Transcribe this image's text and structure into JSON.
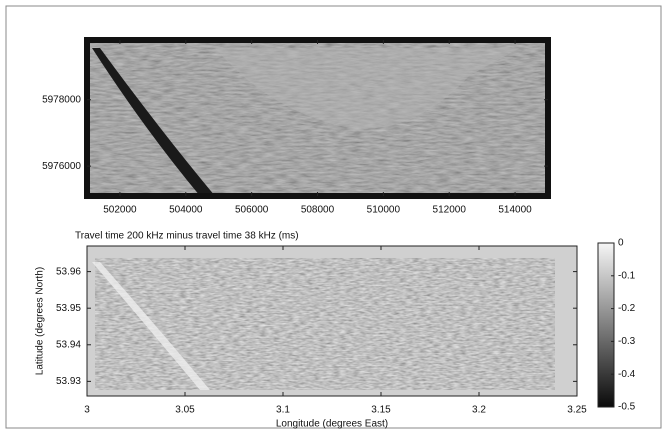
{
  "chart_data": [
    {
      "type": "image",
      "xlim": [
        501000,
        515000
      ],
      "xticks": [
        502000,
        504000,
        506000,
        508000,
        510000,
        512000,
        514000
      ],
      "ylim": [
        5975100,
        5979800
      ],
      "yticks": [
        5976000,
        5978000
      ]
    },
    {
      "type": "heatmap",
      "title": "Travel time 200 kHz minus travel time 38 kHz (ms)",
      "xlabel": "Longitude (degrees East)",
      "ylabel": "Latitude (degrees North)",
      "xlim": [
        3,
        3.25
      ],
      "xticks": [
        3,
        3.05,
        3.1,
        3.15,
        3.2,
        3.25
      ],
      "ylim": [
        53.926,
        53.967
      ],
      "yticks": [
        53.93,
        53.94,
        53.95,
        53.96
      ],
      "clim": [
        -0.5,
        0
      ],
      "cticks": [
        0,
        -0.1,
        -0.2,
        -0.3,
        -0.4,
        -0.5
      ],
      "colormap": [
        "#0a0a0a",
        "#f6f6f6"
      ]
    }
  ]
}
